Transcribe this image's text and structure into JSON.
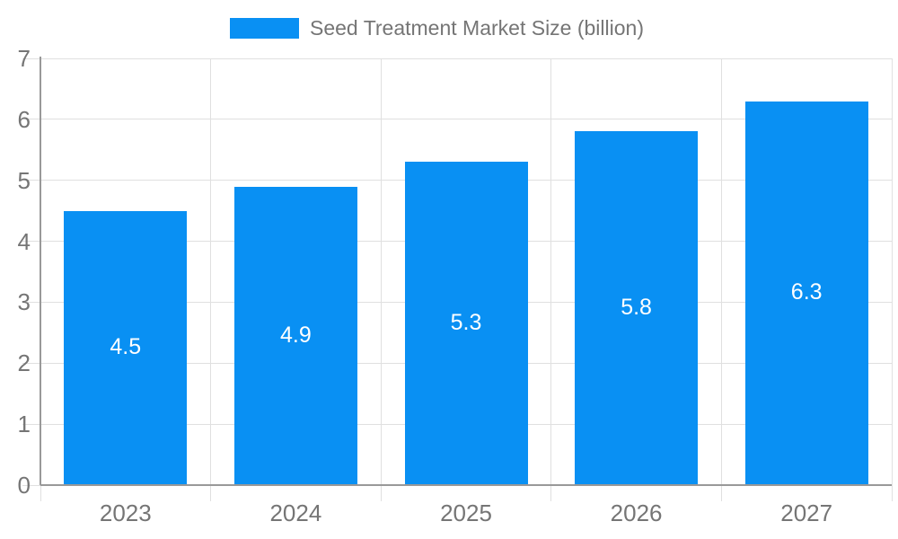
{
  "chart_data": {
    "type": "bar",
    "title": "Seed Treatment Market Size (billion)",
    "legend": {
      "label": "Seed Treatment Market Size (billion)",
      "position": "top"
    },
    "categories": [
      "2023",
      "2024",
      "2025",
      "2026",
      "2027"
    ],
    "series": [
      {
        "name": "Seed Treatment Market Size (billion)",
        "values": [
          4.5,
          4.9,
          5.3,
          5.8,
          6.3
        ],
        "value_labels": [
          "4.5",
          "4.9",
          "5.3",
          "5.8",
          "6.3"
        ]
      }
    ],
    "xlabel": "",
    "ylabel": "",
    "ylim": [
      0,
      7
    ],
    "y_tick_labels": [
      "0",
      "1",
      "2",
      "3",
      "4",
      "5",
      "6",
      "7"
    ],
    "grid": true,
    "legend_visible": true,
    "colors": {
      "bar": "#0990F3",
      "axis": "#999999",
      "gridline": "#e0e0e0",
      "tick_label": "#757575",
      "legend_text": "#757575",
      "data_label": "#ffffff",
      "background": "#ffffff"
    }
  }
}
